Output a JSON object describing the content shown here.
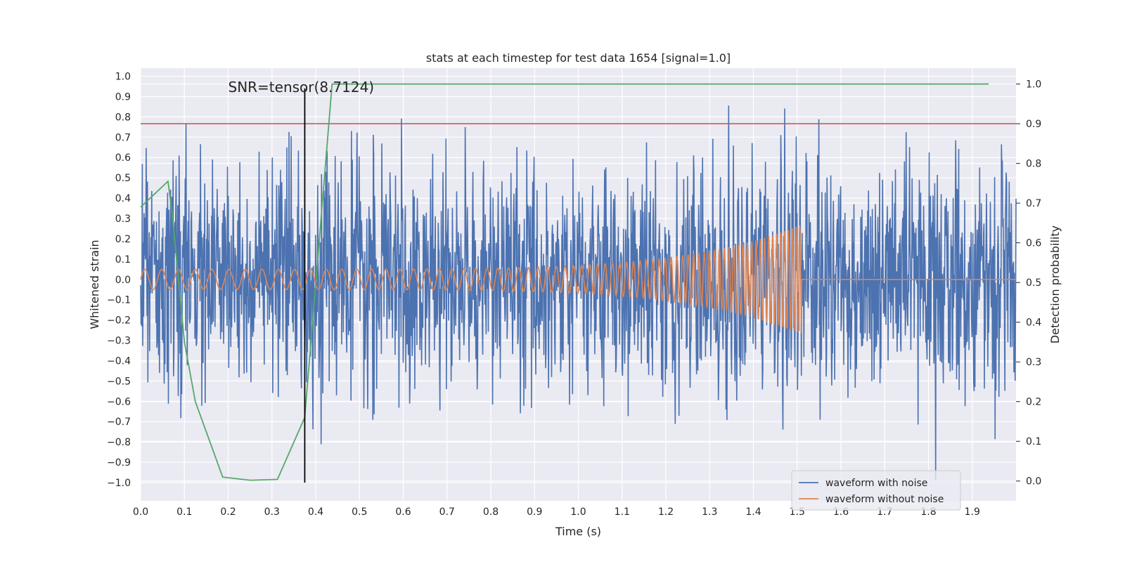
{
  "chart_data": {
    "type": "line",
    "title": "stats at each timestep for test data 1654 [signal=1.0]",
    "xlabel": "Time (s)",
    "ylabel": "Whitened strain",
    "y2label": "Detection probability",
    "xlim": [
      0.0,
      2.0
    ],
    "ylim": [
      -1.09,
      1.04
    ],
    "y2lim": [
      -0.05,
      1.04
    ],
    "xticks": [
      0.0,
      0.1,
      0.2,
      0.3,
      0.4,
      0.5,
      0.6,
      0.7,
      0.8,
      0.9,
      1.0,
      1.1,
      1.2,
      1.3,
      1.4,
      1.5,
      1.6,
      1.7,
      1.8,
      1.9
    ],
    "yticks": [
      -1.0,
      -0.9,
      -0.8,
      -0.7,
      -0.6,
      -0.5,
      -0.4,
      -0.3,
      -0.2,
      -0.1,
      0.0,
      0.1,
      0.2,
      0.3,
      0.4,
      0.5,
      0.6,
      0.7,
      0.8,
      0.9,
      1.0
    ],
    "y2ticks": [
      0.0,
      0.1,
      0.2,
      0.3,
      0.4,
      0.5,
      0.6,
      0.7,
      0.8,
      0.9,
      1.0
    ],
    "annotation": {
      "text": "SNR=tensor(8.7124)",
      "x": 0.2,
      "y": 0.93
    },
    "threshold": {
      "value": 0.9,
      "axis": "right",
      "color": "#c44e52"
    },
    "marker_line": {
      "x": 0.375,
      "y_from": -1.0,
      "y_to": 0.94,
      "color": "#000000"
    },
    "series": [
      {
        "name": "waveform with noise",
        "color": "#4c72b0",
        "axis": "left",
        "generator": "noise",
        "samples": 2048,
        "amplitude_std": 0.27,
        "seed": 1654
      },
      {
        "name": "waveform without noise",
        "color": "#dd8452",
        "axis": "left",
        "generator": "chirp",
        "t_start": 0.0,
        "t_merge": 1.51,
        "f_start": 26,
        "f_end": 120,
        "amp_start": 0.05,
        "amp_peak": 0.27
      },
      {
        "name": "detection probability",
        "color": "#55a868",
        "axis": "right",
        "x": [
          0.0,
          0.0625,
          0.0725,
          0.1,
          0.125,
          0.1875,
          0.25,
          0.3125,
          0.375,
          0.4375,
          0.5,
          0.5625,
          0.625,
          0.6875,
          0.75,
          0.8125,
          0.875,
          0.9375,
          1.0,
          1.0625,
          1.125,
          1.1875,
          1.25,
          1.3125,
          1.375,
          1.4375,
          1.5,
          1.5625,
          1.625,
          1.6875,
          1.75,
          1.8125,
          1.875,
          1.9375
        ],
        "values": [
          0.69,
          0.755,
          0.67,
          0.35,
          0.2,
          0.01,
          0.002,
          0.004,
          0.16,
          1.0,
          1.0,
          1.0,
          1.0,
          1.0,
          1.0,
          1.0,
          1.0,
          1.0,
          1.0,
          1.0,
          1.0,
          1.0,
          1.0,
          1.0,
          1.0,
          1.0,
          1.0,
          1.0,
          1.0,
          1.0,
          1.0,
          1.0,
          1.0,
          1.0
        ]
      }
    ],
    "legend": {
      "position": "lower-right",
      "entries": [
        {
          "label": "waveform with noise",
          "color": "#4c72b0"
        },
        {
          "label": "waveform without noise",
          "color": "#dd8452"
        }
      ]
    },
    "style": {
      "facecolor": "#eaeaf2",
      "gridcolor": "#ffffff"
    }
  }
}
